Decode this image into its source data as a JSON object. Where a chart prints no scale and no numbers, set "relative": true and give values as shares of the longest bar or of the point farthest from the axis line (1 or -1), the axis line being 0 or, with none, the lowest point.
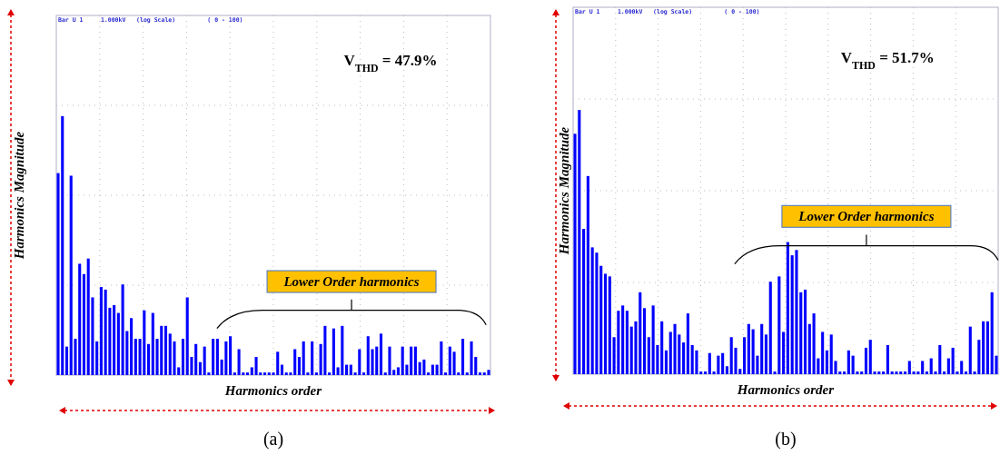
{
  "chart_data": [
    {
      "type": "bar",
      "subtitle": "Bar U 1     1.000kV   (log Scale)         ( 0 - 100)",
      "xlabel": "Harmonics order",
      "ylabel": "Harmonics Magnitude",
      "relative": true,
      "grid": true,
      "color": "#0000ff",
      "annotations": [
        "V$_{THD}$ = 47.9%",
        "Lower Order harmonics",
        "(a)"
      ],
      "categories": [
        null,
        null,
        null,
        null,
        null,
        null,
        null,
        null,
        null,
        null,
        null,
        null,
        null,
        null,
        null,
        null,
        null,
        null,
        null,
        null,
        null,
        null,
        null,
        null,
        null,
        null,
        null,
        null,
        null,
        null,
        null,
        null,
        null,
        null,
        null,
        null,
        null,
        null,
        null,
        null,
        null,
        null,
        null,
        null,
        null,
        null,
        null,
        null,
        null,
        null,
        null,
        null,
        null,
        null,
        null,
        null,
        null,
        null,
        null,
        null,
        null,
        null,
        null,
        null,
        null,
        null,
        null,
        null,
        null,
        null,
        null,
        null,
        null,
        null,
        null,
        null,
        null,
        null,
        null,
        null,
        null,
        null,
        null,
        null,
        null,
        null,
        null,
        null,
        null,
        null,
        null,
        null,
        null,
        null,
        null,
        null,
        null,
        null,
        null,
        null,
        null
      ],
      "values": [
        0.78,
        1.0,
        0.11,
        0.77,
        0.14,
        0.43,
        0.39,
        0.45,
        0.3,
        0.13,
        0.34,
        0.33,
        0.26,
        0.27,
        0.24,
        0.35,
        0.17,
        0.22,
        0.14,
        0.14,
        0.25,
        0.12,
        0.24,
        0.14,
        0.19,
        0.19,
        0.16,
        0.13,
        0.03,
        0.14,
        0.3,
        0.07,
        0.12,
        0.05,
        0.11,
        0.01,
        0.14,
        0.14,
        0.06,
        0.13,
        0.15,
        0.01,
        0.1,
        0.01,
        0.01,
        0.03,
        0.07,
        0.01,
        0.01,
        0.01,
        0.01,
        0.09,
        0.04,
        0.01,
        0.01,
        0.1,
        0.07,
        0.13,
        0.01,
        0.13,
        0.01,
        0.12,
        0.19,
        0.01,
        0.18,
        0.03,
        0.19,
        0.04,
        0.04,
        0.01,
        0.1,
        0.01,
        0.15,
        0.1,
        0.11,
        0.16,
        0.01,
        0.11,
        0.02,
        0.03,
        0.11,
        0.04,
        0.11,
        0.11,
        0.05,
        0.06,
        0.01,
        0.04,
        0.04,
        0.13,
        0.01,
        0.11,
        0.09,
        0.01,
        0.14,
        0.01,
        0.13,
        0.07,
        0.01,
        0.01,
        0.02
      ]
    },
    {
      "type": "bar",
      "subtitle": "Bar U 1     1.000kV   (log Scale)         ( 0 - 100)",
      "xlabel": "Harmonics order",
      "ylabel": "Harmonics Magnitude",
      "relative": true,
      "grid": true,
      "color": "#0000ff",
      "annotations": [
        "V$_{THD}$ = 51.7%",
        "Lower Order harmonics",
        "(b)"
      ],
      "categories": [
        null,
        null,
        null,
        null,
        null,
        null,
        null,
        null,
        null,
        null,
        null,
        null,
        null,
        null,
        null,
        null,
        null,
        null,
        null,
        null,
        null,
        null,
        null,
        null,
        null,
        null,
        null,
        null,
        null,
        null,
        null,
        null,
        null,
        null,
        null,
        null,
        null,
        null,
        null,
        null,
        null,
        null,
        null,
        null,
        null,
        null,
        null,
        null,
        null,
        null,
        null,
        null,
        null,
        null,
        null,
        null,
        null,
        null,
        null,
        null,
        null,
        null,
        null,
        null,
        null,
        null,
        null,
        null,
        null,
        null,
        null,
        null,
        null,
        null,
        null,
        null,
        null,
        null,
        null,
        null,
        null,
        null,
        null,
        null,
        null,
        null,
        null,
        null,
        null,
        null,
        null,
        null,
        null,
        null,
        null,
        null,
        null,
        null
      ],
      "values": [
        0.91,
        1.0,
        0.55,
        0.75,
        0.48,
        0.46,
        0.41,
        0.38,
        0.37,
        0.14,
        0.24,
        0.26,
        0.24,
        0.18,
        0.2,
        0.31,
        0.25,
        0.14,
        0.26,
        0.11,
        0.2,
        0.09,
        0.16,
        0.19,
        0.15,
        0.12,
        0.23,
        0.11,
        0.09,
        0.01,
        0.01,
        0.08,
        0.01,
        0.07,
        0.08,
        0.03,
        0.14,
        0.1,
        0.02,
        0.14,
        0.19,
        0.17,
        0.07,
        0.19,
        0.15,
        0.35,
        0.01,
        0.37,
        0.16,
        0.5,
        0.45,
        0.47,
        0.31,
        0.32,
        0.19,
        0.23,
        0.06,
        0.16,
        0.09,
        0.15,
        0.05,
        0.01,
        0.01,
        0.09,
        0.07,
        0.01,
        0.01,
        0.1,
        0.13,
        0.01,
        0.01,
        0.01,
        0.11,
        0.01,
        0.01,
        0.01,
        0.01,
        0.05,
        0.01,
        0.01,
        0.05,
        0.01,
        0.06,
        0.01,
        0.11,
        0.01,
        0.06,
        0.1,
        0.01,
        0.05,
        0.01,
        0.18,
        0.01,
        0.13,
        0.2,
        0.2,
        0.31,
        0.07
      ]
    }
  ]
}
